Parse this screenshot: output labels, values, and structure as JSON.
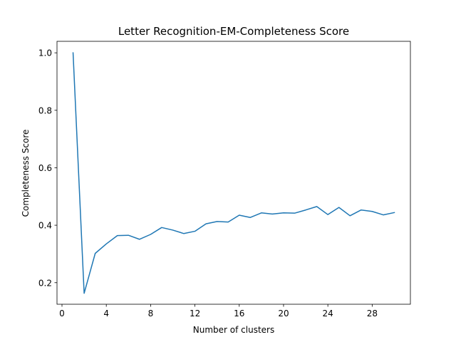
{
  "chart_data": {
    "type": "line",
    "title": "Letter Recognition-EM-Completeness Score",
    "xlabel": "Number of clusters",
    "ylabel": "Completeness Score",
    "xlim": [
      -0.45,
      31.45
    ],
    "ylim": [
      0.125,
      1.04
    ],
    "xticks": [
      0,
      4,
      8,
      12,
      16,
      20,
      24,
      28
    ],
    "yticks": [
      0.2,
      0.4,
      0.6,
      0.8,
      1.0
    ],
    "ytick_labels": [
      "0.2",
      "0.4",
      "0.6",
      "0.8",
      "1.0"
    ],
    "grid": false,
    "colors": {
      "line": "#1f77b4"
    },
    "series": [
      {
        "x": [
          1,
          2,
          3,
          4,
          5,
          6,
          7,
          8,
          9,
          10,
          11,
          12,
          13,
          14,
          15,
          16,
          17,
          18,
          19,
          20,
          21,
          22,
          23,
          24,
          25,
          26,
          27,
          28,
          29,
          30
        ],
        "values": [
          1.0,
          0.163,
          0.302,
          0.335,
          0.364,
          0.365,
          0.351,
          0.368,
          0.392,
          0.383,
          0.371,
          0.379,
          0.405,
          0.413,
          0.411,
          0.435,
          0.427,
          0.443,
          0.439,
          0.443,
          0.442,
          0.453,
          0.465,
          0.437,
          0.462,
          0.433,
          0.453,
          0.448,
          0.436,
          0.444
        ]
      }
    ]
  }
}
